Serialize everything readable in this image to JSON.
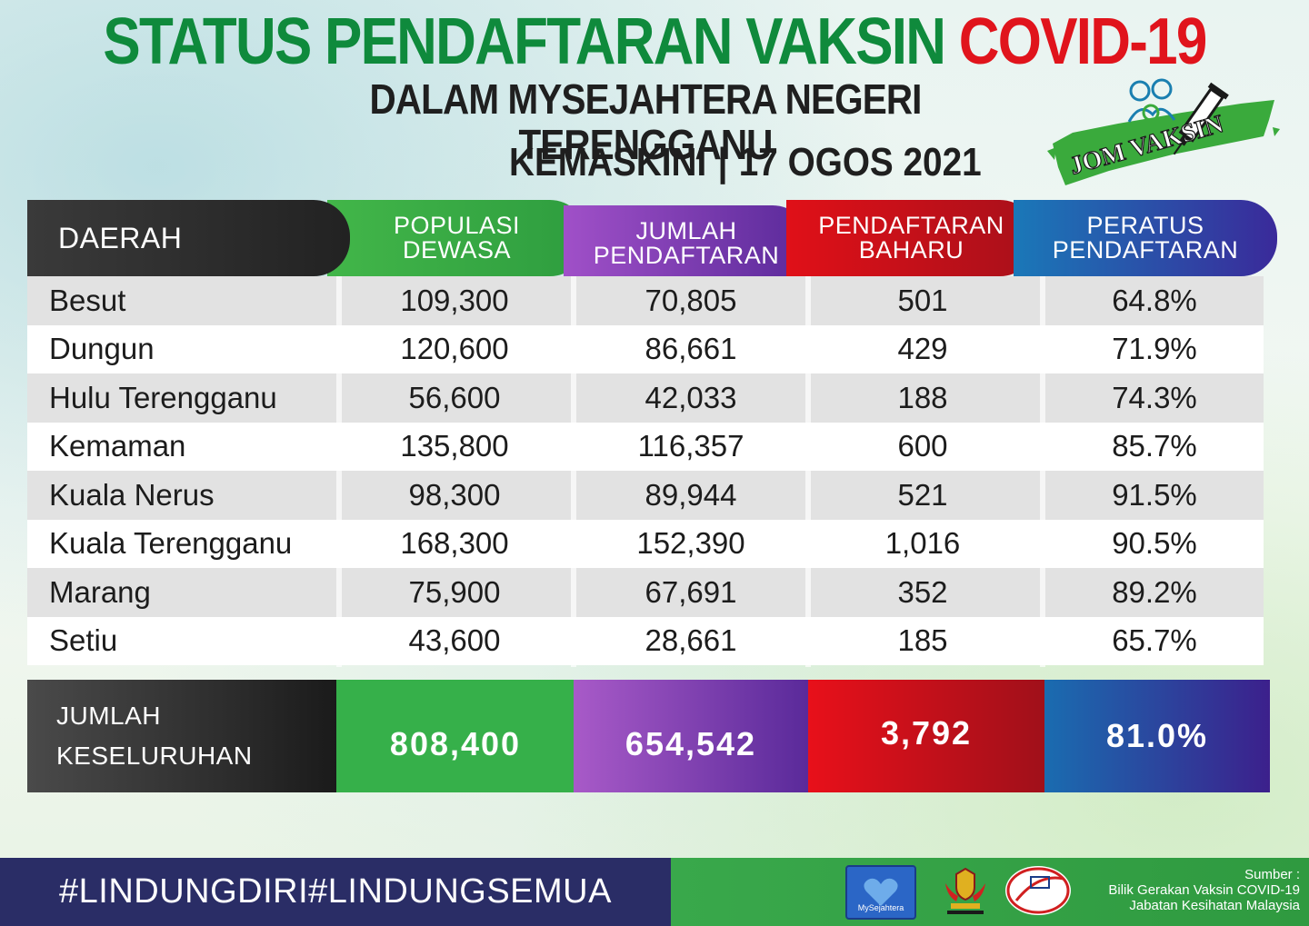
{
  "header": {
    "title_main": "STATUS PENDAFTARAN VAKSIN",
    "title_highlight": "COVID-19",
    "subtitle": "DALAM MYSEJAHTERA NEGERI TERENGGANU",
    "updated_label": "KEMASKINI",
    "updated_sep": "|",
    "updated_date": "17 OGOS 2021",
    "badge_text": "JOM VAKSIN"
  },
  "columns": {
    "daerah": "DAERAH",
    "populasi": [
      "POPULASI",
      "DEWASA"
    ],
    "jumlah": [
      "JUMLAH",
      "PENDAFTARAN"
    ],
    "baharu": [
      "PENDAFTARAN",
      "BAHARU"
    ],
    "peratus": [
      "PERATUS",
      "PENDAFTARAN"
    ]
  },
  "rows": [
    {
      "daerah": "Besut",
      "populasi": "109,300",
      "jumlah": "70,805",
      "baharu": "501",
      "peratus": "64.8%"
    },
    {
      "daerah": "Dungun",
      "populasi": "120,600",
      "jumlah": "86,661",
      "baharu": "429",
      "peratus": "71.9%"
    },
    {
      "daerah": "Hulu Terengganu",
      "populasi": "56,600",
      "jumlah": "42,033",
      "baharu": "188",
      "peratus": "74.3%"
    },
    {
      "daerah": "Kemaman",
      "populasi": "135,800",
      "jumlah": "116,357",
      "baharu": "600",
      "peratus": "85.7%"
    },
    {
      "daerah": "Kuala Nerus",
      "populasi": "98,300",
      "jumlah": "89,944",
      "baharu": "521",
      "peratus": "91.5%"
    },
    {
      "daerah": "Kuala Terengganu",
      "populasi": "168,300",
      "jumlah": "152,390",
      "baharu": "1,016",
      "peratus": "90.5%"
    },
    {
      "daerah": "Marang",
      "populasi": "75,900",
      "jumlah": "67,691",
      "baharu": "352",
      "peratus": "89.2%"
    },
    {
      "daerah": "Setiu",
      "populasi": "43,600",
      "jumlah": "28,661",
      "baharu": "185",
      "peratus": "65.7%"
    }
  ],
  "total": {
    "label": [
      "JUMLAH",
      "KESELURUHAN"
    ],
    "populasi": "808,400",
    "jumlah": "654,542",
    "baharu": "3,792",
    "peratus": "81.0%"
  },
  "footer": {
    "hashtag": "#LINDUNGDIRI#LINDUNGSEMUA",
    "source_label": "Sumber :",
    "source_line1": "Bilik Gerakan Vaksin COVID-19",
    "source_line2": "Jabatan Kesihatan Malaysia",
    "logo_mysejahtera": "MySejahtera"
  },
  "colors": {
    "title_green": "#0f8a3c",
    "title_red": "#e0141c",
    "green": "#36b04a",
    "purple": "#7a3ab0",
    "red": "#d8101a",
    "blue": "#2a4ca0",
    "footer_navy": "#2a2d66"
  }
}
